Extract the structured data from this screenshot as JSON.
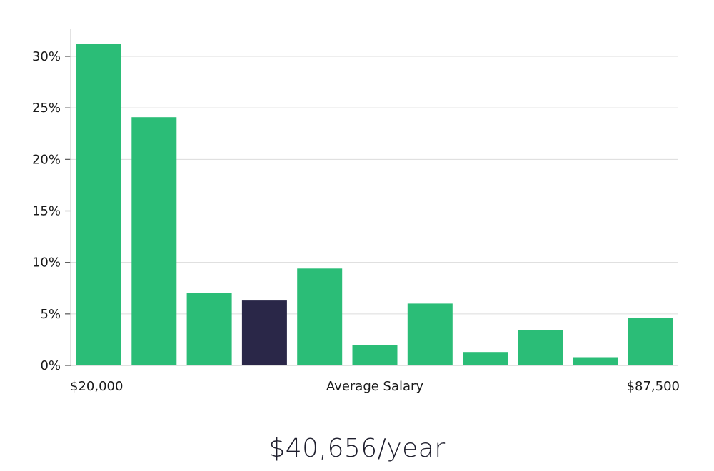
{
  "chart_data": {
    "type": "bar",
    "values": [
      31.2,
      24.1,
      7.0,
      6.3,
      9.4,
      2.0,
      6.0,
      1.3,
      3.4,
      0.8,
      4.6
    ],
    "highlight_index": 3,
    "ylim": [
      0,
      30
    ],
    "yticks": [
      "0%",
      "5%",
      "10%",
      "15%",
      "20%",
      "25%",
      "30%"
    ],
    "xlabel": "Average Salary",
    "x_min_label": "$20,000",
    "x_max_label": "$87,500",
    "grid": true,
    "colors": {
      "bar": "#2bbd77",
      "highlight": "#2a2748",
      "grid": "#dcdcdc",
      "axis": "#d8d8d8"
    }
  },
  "summary": {
    "salary_text": "$40,656/year"
  }
}
